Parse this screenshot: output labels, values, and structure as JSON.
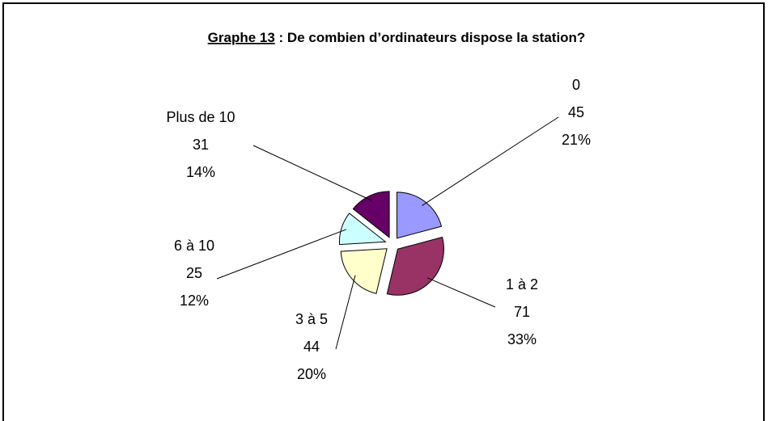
{
  "chart_data": {
    "type": "pie",
    "title": {
      "number": "Graphe 13",
      "text": " : De combien d’ordinateurs dispose la station?"
    },
    "categories": [
      "0",
      "1 à 2",
      "3 à 5",
      "6 à 10",
      "Plus de 10"
    ],
    "values": [
      45,
      71,
      44,
      25,
      31
    ],
    "percent_labels": [
      "21%",
      "33%",
      "20%",
      "12%",
      "14%"
    ],
    "colors": [
      "#9999ff",
      "#993366",
      "#ffffcc",
      "#ccffff",
      "#660066"
    ]
  }
}
